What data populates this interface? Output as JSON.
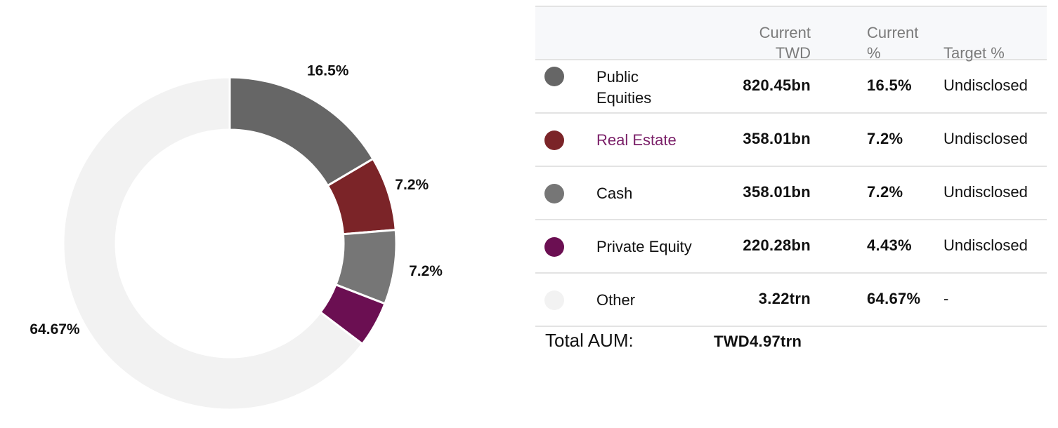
{
  "chart_data": {
    "type": "pie",
    "categories": [
      "Public Equities",
      "Real Estate",
      "Cash",
      "Private Equity",
      "Other"
    ],
    "values": [
      16.5,
      7.2,
      7.2,
      4.43,
      64.67
    ],
    "labels": [
      "16.5%",
      "7.2%",
      "7.2%",
      "",
      "64.67%"
    ],
    "colors": [
      "#666666",
      "#7b2428",
      "#767676",
      "#6b0f52",
      "#f2f2f2"
    ],
    "donut": true,
    "title": ""
  },
  "table": {
    "header": {
      "current_twd_line1": "Current",
      "current_twd_line2": "TWD",
      "current_pct_line1": "Current",
      "current_pct_line2": "%",
      "target_pct": "Target %"
    },
    "rows": [
      {
        "category_line1": "Public",
        "category_line2": "Equities",
        "current": "820.45bn",
        "current_pct": "16.5%",
        "target": "Undisclosed",
        "color": "#666666"
      },
      {
        "category": "Real Estate",
        "current": "358.01bn",
        "current_pct": "7.2%",
        "target": "Undisclosed",
        "color": "#7b2428"
      },
      {
        "category": "Cash",
        "current": "358.01bn",
        "current_pct": "7.2%",
        "target": "Undisclosed",
        "color": "#767676"
      },
      {
        "category": "Private Equity",
        "current": "220.28bn",
        "current_pct": "4.43%",
        "target": "Undisclosed",
        "color": "#6b0f52"
      },
      {
        "category": "Other",
        "current": "3.22trn",
        "current_pct": "64.67%",
        "target": "-",
        "color": "#f2f2f2"
      }
    ],
    "total_label": "Total AUM:",
    "total_value": "TWD4.97trn"
  }
}
